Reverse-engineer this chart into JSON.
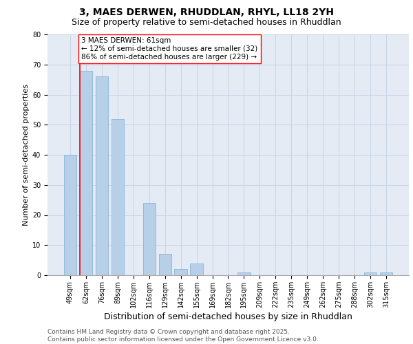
{
  "title_line1": "3, MAES DERWEN, RHUDDLAN, RHYL, LL18 2YH",
  "title_line2": "Size of property relative to semi-detached houses in Rhuddlan",
  "xlabel": "Distribution of semi-detached houses by size in Rhuddlan",
  "ylabel": "Number of semi-detached properties",
  "categories": [
    "49sqm",
    "62sqm",
    "76sqm",
    "89sqm",
    "102sqm",
    "116sqm",
    "129sqm",
    "142sqm",
    "155sqm",
    "169sqm",
    "182sqm",
    "195sqm",
    "209sqm",
    "222sqm",
    "235sqm",
    "249sqm",
    "262sqm",
    "275sqm",
    "288sqm",
    "302sqm",
    "315sqm"
  ],
  "values": [
    40,
    68,
    66,
    52,
    0,
    24,
    7,
    2,
    4,
    0,
    0,
    1,
    0,
    0,
    0,
    0,
    0,
    0,
    0,
    1,
    1
  ],
  "bar_color": "#b8cfe8",
  "bar_edge_color": "#7aadd4",
  "vline_color": "red",
  "vline_bar_index": 1,
  "annotation_text": "3 MAES DERWEN: 61sqm\n← 12% of semi-detached houses are smaller (32)\n86% of semi-detached houses are larger (229) →",
  "annotation_box_color": "white",
  "annotation_box_edge_color": "red",
  "ylim": [
    0,
    80
  ],
  "yticks": [
    0,
    10,
    20,
    30,
    40,
    50,
    60,
    70,
    80
  ],
  "grid_color": "#c8d4e4",
  "background_color": "#e4ebf5",
  "footer": "Contains HM Land Registry data © Crown copyright and database right 2025.\nContains public sector information licensed under the Open Government Licence v3.0.",
  "title_fontsize": 10,
  "subtitle_fontsize": 9,
  "xlabel_fontsize": 9,
  "ylabel_fontsize": 8,
  "tick_fontsize": 7,
  "annot_fontsize": 7.5,
  "footer_fontsize": 6.5
}
